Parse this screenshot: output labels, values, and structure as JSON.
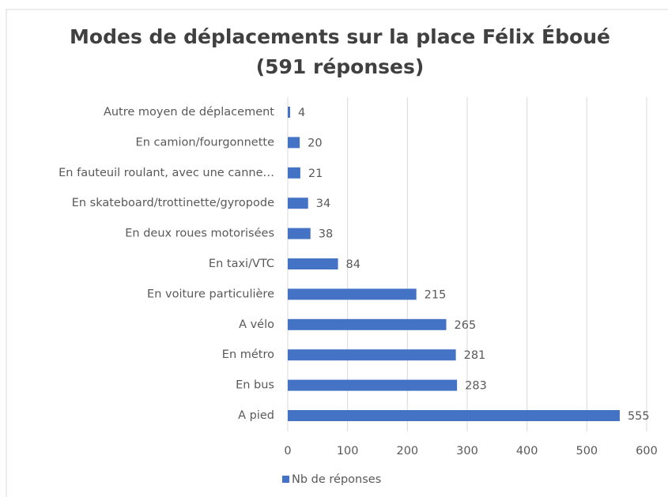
{
  "chart_data": {
    "type": "barh",
    "title": "Modes de déplacements sur la place Félix Éboué (591 réponses)",
    "categories": [
      "Autre moyen de déplacement",
      "En camion/fourgonnette",
      "En fauteuil roulant, avec une canne…",
      "En skateboard/trottinette/gyropode",
      "En deux roues motorisées",
      "En taxi/VTC",
      "En voiture particulière",
      "A vélo",
      "En métro",
      "En bus",
      "A pied"
    ],
    "series": [
      {
        "name": "Nb de réponses",
        "color": "#4472c4",
        "values": [
          4,
          20,
          21,
          34,
          38,
          84,
          215,
          265,
          281,
          283,
          555
        ]
      }
    ],
    "xlim": [
      0,
      600
    ],
    "xticks": [
      0,
      100,
      200,
      300,
      400,
      500,
      600
    ],
    "grid": true,
    "legend": "bottom"
  }
}
